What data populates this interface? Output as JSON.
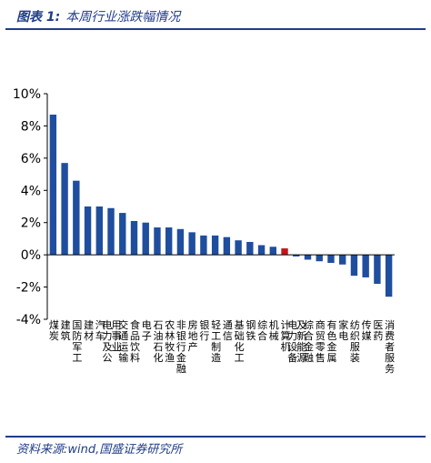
{
  "header": {
    "figure_label": "图表 1:",
    "title": "本周行业涨跌幅情况"
  },
  "footer": {
    "source": "资料来源:wind,国盛证券研究所"
  },
  "chart_data": {
    "type": "bar",
    "title": "本周行业涨跌幅情况",
    "xlabel": "",
    "ylabel": "",
    "ylim": [
      -4,
      10
    ],
    "yticks": [
      10,
      8,
      6,
      4,
      2,
      0,
      -2,
      -4
    ],
    "ytick_labels": [
      "10%",
      "8%",
      "6%",
      "4%",
      "2%",
      "0%",
      "-2%",
      "-4%"
    ],
    "grid": false,
    "legend": "none",
    "unit": "%",
    "colors": {
      "default": "#1f4e9e",
      "highlight": "#c0161c"
    },
    "highlight_category": "计算机",
    "categories": [
      "煤炭",
      "建筑",
      "国防军工",
      "建材",
      "汽车",
      "电力及公用事业",
      "交通运输",
      "食品饮料",
      "电子",
      "石油石化",
      "农林牧渔",
      "非银行金融",
      "房地产",
      "银行",
      "轻工制造",
      "通信",
      "基础化工",
      "钢铁",
      "综合",
      "机械",
      "计算机",
      "电力设备及新能源",
      "综合金融",
      "商贸零售",
      "有色金属",
      "家电",
      "纺织服装",
      "传媒",
      "医药",
      "消费者服务"
    ],
    "values": [
      8.7,
      5.7,
      4.6,
      3.0,
      3.0,
      2.9,
      2.6,
      2.1,
      2.0,
      1.7,
      1.7,
      1.6,
      1.4,
      1.2,
      1.2,
      1.1,
      0.9,
      0.8,
      0.6,
      0.5,
      0.4,
      -0.1,
      -0.3,
      -0.4,
      -0.5,
      -0.6,
      -1.3,
      -1.4,
      -1.8,
      -2.6
    ]
  }
}
